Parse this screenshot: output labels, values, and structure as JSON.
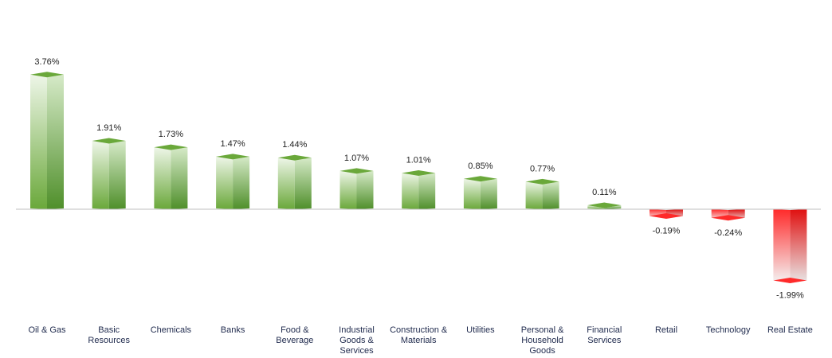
{
  "chart_data": {
    "type": "bar",
    "categories": [
      "Oil & Gas",
      "Basic Resources",
      "Chemicals",
      "Banks",
      "Food & Beverage",
      "Industrial Goods & Services",
      "Construction & Materials",
      "Utilities",
      "Personal & Household Goods",
      "Financial Services",
      "Retail",
      "Technology",
      "Real Estate"
    ],
    "category_lines": [
      [
        "Oil & Gas"
      ],
      [
        "Basic",
        "Resources"
      ],
      [
        "Chemicals"
      ],
      [
        "Banks"
      ],
      [
        "Food &",
        "Beverage"
      ],
      [
        "Industrial",
        "Goods &",
        "Services"
      ],
      [
        "Construction &",
        "Materials"
      ],
      [
        "Utilities"
      ],
      [
        "Personal &",
        "Household",
        "Goods"
      ],
      [
        "Financial",
        "Services"
      ],
      [
        "Retail"
      ],
      [
        "Technology"
      ],
      [
        "Real Estate"
      ]
    ],
    "values": [
      3.76,
      1.91,
      1.73,
      1.47,
      1.44,
      1.07,
      1.01,
      0.85,
      0.77,
      0.11,
      -0.19,
      -0.24,
      -1.99
    ],
    "labels": [
      "3.76%",
      "1.91%",
      "1.73%",
      "1.47%",
      "1.44%",
      "1.07%",
      "1.01%",
      "0.85%",
      "0.77%",
      "0.11%",
      "-0.19%",
      "-0.24%",
      "-1.99%"
    ],
    "title": "",
    "xlabel": "",
    "ylabel": "",
    "ylim": [
      -2.3,
      4.4
    ],
    "grid": false,
    "legend": "none",
    "colors": {
      "positive": "#6aa83a",
      "positive_light": "#eef6e8",
      "negative": "#ff2a2a",
      "negative_light": "#f4f4f4",
      "axis": "#bfbfbf",
      "category_text": "#1f2a4d"
    }
  }
}
